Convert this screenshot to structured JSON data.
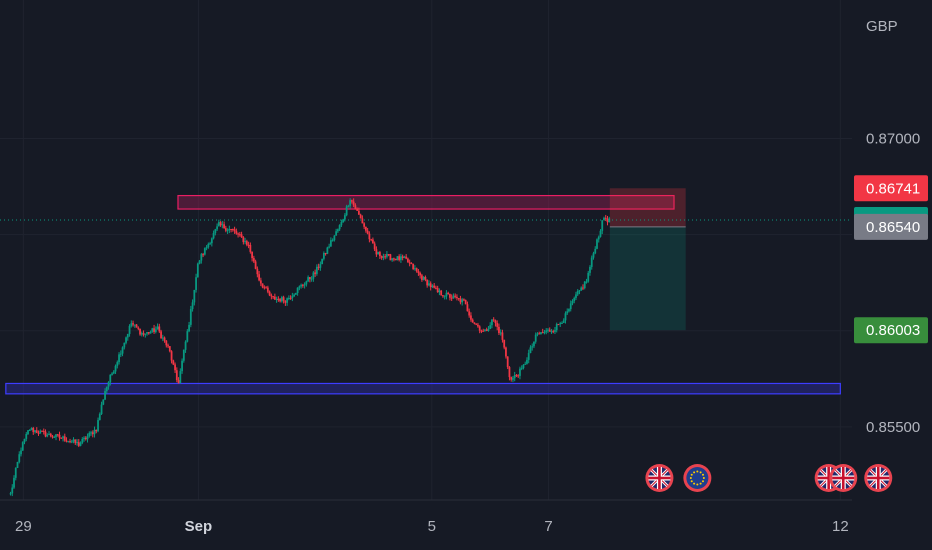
{
  "chart_data": {
    "type": "candlestick",
    "currency_label": "GBP",
    "y_range": [
      0.8512,
      0.8772
    ],
    "x_range_days": [
      28.6,
      43.2
    ],
    "y_ticks": [
      {
        "value": 0.87,
        "label": "0.87000"
      },
      {
        "value": 0.855,
        "label": "0.85500"
      }
    ],
    "x_ticks": [
      {
        "day": 29,
        "label": "29",
        "bold": false
      },
      {
        "day": 32,
        "label": "Sep",
        "bold": true
      },
      {
        "day": 36,
        "label": "5",
        "bold": false
      },
      {
        "day": 38,
        "label": "7",
        "bold": false
      },
      {
        "day": 43,
        "label": "12",
        "bold": false
      }
    ],
    "price_path": [
      [
        28.78,
        0.8515
      ],
      [
        28.95,
        0.8538
      ],
      [
        29.1,
        0.8549
      ],
      [
        29.4,
        0.8546
      ],
      [
        29.7,
        0.8544
      ],
      [
        29.95,
        0.8541
      ],
      [
        30.25,
        0.8549
      ],
      [
        30.4,
        0.8569
      ],
      [
        30.6,
        0.8584
      ],
      [
        30.85,
        0.8604
      ],
      [
        31.05,
        0.8598
      ],
      [
        31.3,
        0.8601
      ],
      [
        31.5,
        0.859
      ],
      [
        31.65,
        0.8572
      ],
      [
        31.85,
        0.8606
      ],
      [
        32.0,
        0.8636
      ],
      [
        32.2,
        0.8647
      ],
      [
        32.35,
        0.8655
      ],
      [
        32.6,
        0.8652
      ],
      [
        32.85,
        0.8645
      ],
      [
        33.05,
        0.8626
      ],
      [
        33.25,
        0.8617
      ],
      [
        33.5,
        0.8616
      ],
      [
        33.75,
        0.8623
      ],
      [
        34.0,
        0.863
      ],
      [
        34.25,
        0.8645
      ],
      [
        34.45,
        0.8656
      ],
      [
        34.6,
        0.8669
      ],
      [
        34.8,
        0.8657
      ],
      [
        35.05,
        0.864
      ],
      [
        35.3,
        0.8638
      ],
      [
        35.55,
        0.8637
      ],
      [
        35.85,
        0.8627
      ],
      [
        36.1,
        0.862
      ],
      [
        36.3,
        0.8618
      ],
      [
        36.55,
        0.8615
      ],
      [
        36.7,
        0.8605
      ],
      [
        36.9,
        0.8599
      ],
      [
        37.05,
        0.8606
      ],
      [
        37.2,
        0.8597
      ],
      [
        37.35,
        0.8574
      ],
      [
        37.55,
        0.858
      ],
      [
        37.8,
        0.8598
      ],
      [
        38.1,
        0.8601
      ],
      [
        38.3,
        0.8608
      ],
      [
        38.45,
        0.8617
      ],
      [
        38.65,
        0.8626
      ],
      [
        38.8,
        0.8644
      ],
      [
        38.95,
        0.8659
      ],
      [
        39.05,
        0.8657
      ]
    ],
    "current_price": 0.86576,
    "price_labels": [
      {
        "label": "0.86741",
        "value": 0.86741,
        "color": "#f23645"
      },
      {
        "label": "0.86576",
        "value": 0.86576,
        "color": "#089981"
      },
      {
        "label": "0.86540",
        "value": 0.8654,
        "color": "#787b86"
      },
      {
        "label": "0.86003",
        "value": 0.86003,
        "color": "#388e3c"
      }
    ],
    "zones": [
      {
        "name": "resistance",
        "day_start": 31.65,
        "day_end": 40.15,
        "price_low": 0.86633,
        "price_high": 0.86703,
        "stroke": "#e91e63",
        "fill": "#7b1f4a"
      },
      {
        "name": "support",
        "day_start": 28.7,
        "day_end": 43.0,
        "price_low": 0.85672,
        "price_high": 0.85726,
        "stroke": "#3d3dff",
        "fill": "#2a2a8c"
      }
    ],
    "position": {
      "day_start": 39.05,
      "day_end": 40.35,
      "entry": 0.8654,
      "stop": 0.86741,
      "target": 0.86003
    },
    "events": [
      {
        "day": 39.9,
        "icon": "uk-flag-icon"
      },
      {
        "day": 40.55,
        "icon": "eu-flag-icon"
      },
      {
        "day": 42.8,
        "icon": "uk-flag-icon"
      },
      {
        "day": 43.05,
        "icon": "uk-flag-icon"
      },
      {
        "day": 43.65,
        "icon": "uk-flag-icon"
      }
    ],
    "colors": {
      "up": "#089981",
      "down": "#f23645",
      "grid": "#1f232f",
      "background": "#161a25"
    }
  }
}
